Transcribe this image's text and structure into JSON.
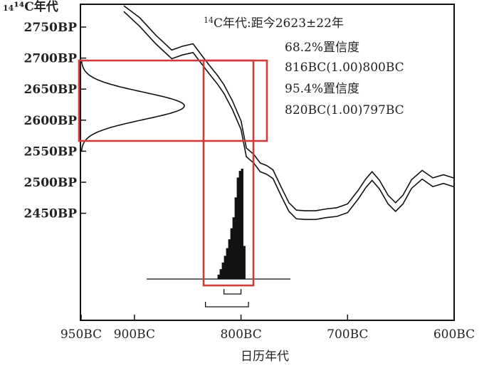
{
  "chart_data": {
    "type": "line",
    "title": "",
    "ylabel": "¹⁴C年代",
    "xlabel": "日历年代",
    "x_ticks": [
      "950BC",
      "900BC",
      "800BC",
      "700BC",
      "600BC"
    ],
    "y_ticks": [
      "2750BP",
      "2700BP",
      "2650BP",
      "2600BP",
      "2550BP",
      "2500BP",
      "2450BP"
    ],
    "xlim_bc": [
      950,
      600
    ],
    "ylim_bp": [
      2410,
      2775
    ],
    "annotation": {
      "sup": "14",
      "label": "C年代",
      "value": ":距今2623±22年",
      "lines": [
        "68.2%置信度",
        "816BC(1.00)800BC",
        "95.4%置信度",
        "820BC(1.00)797BC"
      ]
    },
    "calibration_curve": {
      "x_bc": [
        910,
        895,
        880,
        865,
        855,
        845,
        838,
        830,
        822,
        816,
        808,
        800,
        795,
        788,
        782,
        776,
        770,
        762,
        755,
        748,
        740,
        730,
        720,
        710,
        700,
        690,
        683,
        677,
        670,
        662,
        655,
        648,
        640,
        630,
        620,
        610,
        600
      ],
      "y_bp": [
        2782,
        2758,
        2730,
        2706,
        2712,
        2716,
        2700,
        2682,
        2665,
        2650,
        2624,
        2592,
        2548,
        2538,
        2524,
        2520,
        2513,
        2484,
        2460,
        2448,
        2447,
        2447,
        2450,
        2452,
        2458,
        2480,
        2498,
        2510,
        2496,
        2472,
        2460,
        2472,
        2497,
        2512,
        2500,
        2505,
        2500
      ],
      "band_bp": 14
    },
    "measured_distribution": {
      "mean_bp": 2623,
      "sigma_bp": 22
    },
    "calibrated_histogram": {
      "bins_bc": [
        822,
        820,
        818,
        816,
        814,
        812,
        810,
        808,
        806,
        804,
        802,
        800,
        798
      ],
      "relative_probability": [
        0.04,
        0.09,
        0.15,
        0.21,
        0.28,
        0.36,
        0.46,
        0.56,
        0.74,
        0.92,
        0.98,
        1.0,
        0.3
      ]
    },
    "ranges": {
      "sigma1": "816BC–800BC",
      "sigma2": "820BC–797BC"
    },
    "highlight_color": "#d33a3a"
  }
}
